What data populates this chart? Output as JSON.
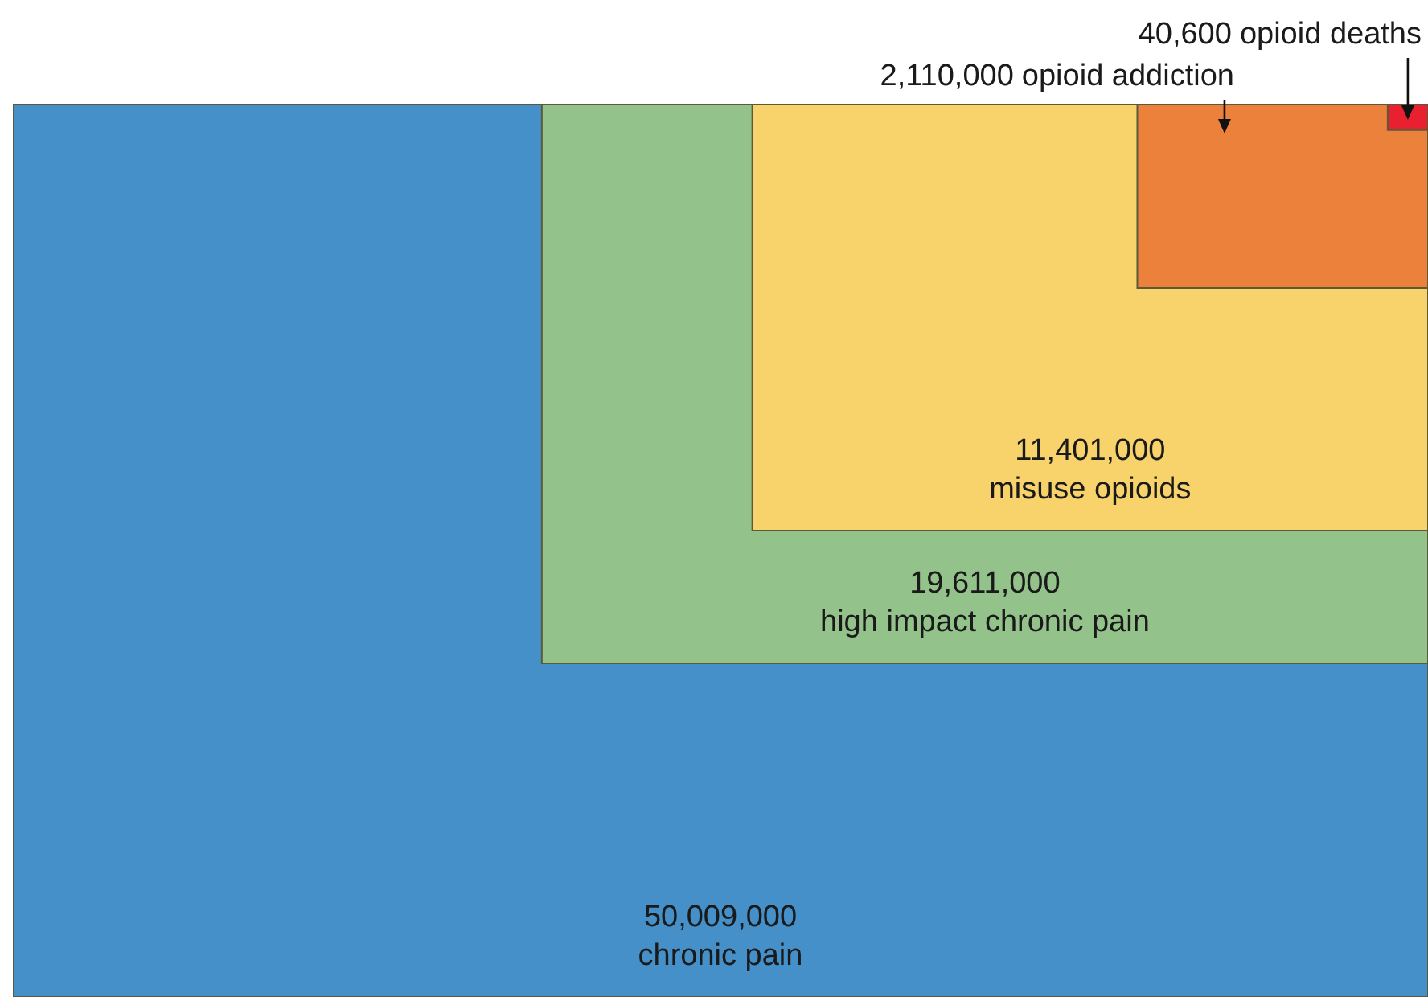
{
  "chart_data": {
    "type": "other",
    "categories": [
      "chronic pain",
      "high impact chronic pain",
      "misuse opioids",
      "opioid addiction",
      "opioid deaths"
    ],
    "values": [
      50009000,
      19611000,
      11401000,
      2110000,
      40600
    ],
    "value_labels": [
      "50,009,000",
      "19,611,000",
      "11,401,000",
      "2,110,000",
      "40,600"
    ],
    "colors": [
      "#4590c9",
      "#93c38a",
      "#f8d36b",
      "#ec813b",
      "#e8202f"
    ]
  }
}
